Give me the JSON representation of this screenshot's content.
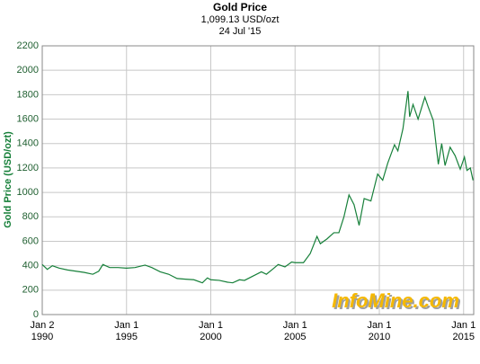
{
  "chart_data": {
    "type": "line",
    "title": "Gold Price",
    "subtitle": "1,099.13 USD/ozt",
    "date": "24 Jul '15",
    "y_label": "Gold Price (USD/ozt)",
    "watermark": "InfoMine.com",
    "color": "#17803a",
    "grid": true,
    "x": [
      1990.0,
      1990.3,
      1990.6,
      1991.0,
      1991.5,
      1992.0,
      1992.5,
      1993.0,
      1993.35,
      1993.6,
      1994.0,
      1994.5,
      1995.0,
      1995.5,
      1996.1,
      1996.5,
      1997.0,
      1997.5,
      1998.0,
      1998.5,
      1999.0,
      1999.5,
      1999.8,
      2000.0,
      2000.5,
      2001.0,
      2001.3,
      2001.7,
      2002.0,
      2002.5,
      2003.0,
      2003.3,
      2003.7,
      2004.0,
      2004.4,
      2004.8,
      2005.0,
      2005.5,
      2005.9,
      2006.3,
      2006.5,
      2006.9,
      2007.3,
      2007.6,
      2007.9,
      2008.2,
      2008.5,
      2008.8,
      2009.1,
      2009.5,
      2009.9,
      2010.2,
      2010.5,
      2010.9,
      2011.1,
      2011.4,
      2011.7,
      2011.8,
      2012.0,
      2012.3,
      2012.7,
      2012.9,
      2013.2,
      2013.5,
      2013.7,
      2013.9,
      2014.2,
      2014.5,
      2014.8,
      2015.05,
      2015.2,
      2015.4,
      2015.56
    ],
    "values": [
      410,
      370,
      400,
      380,
      365,
      355,
      345,
      330,
      355,
      410,
      385,
      385,
      380,
      385,
      405,
      385,
      350,
      330,
      295,
      290,
      285,
      260,
      300,
      285,
      280,
      265,
      260,
      285,
      280,
      315,
      350,
      330,
      375,
      410,
      390,
      430,
      425,
      425,
      500,
      640,
      580,
      620,
      670,
      670,
      800,
      980,
      900,
      730,
      950,
      930,
      1150,
      1100,
      1240,
      1390,
      1340,
      1520,
      1830,
      1620,
      1720,
      1600,
      1780,
      1700,
      1590,
      1230,
      1400,
      1220,
      1370,
      1300,
      1190,
      1290,
      1180,
      1200,
      1099.13
    ],
    "xlim": [
      1990,
      2015.6
    ],
    "xticks": [
      {
        "value": 1990,
        "label": [
          "Jan 2",
          "1990"
        ]
      },
      {
        "value": 1995,
        "label": [
          "Jan 1",
          "1995"
        ]
      },
      {
        "value": 2000,
        "label": [
          "Jan 1",
          "2000"
        ]
      },
      {
        "value": 2005,
        "label": [
          "Jan 1",
          "2005"
        ]
      },
      {
        "value": 2010,
        "label": [
          "Jan 1",
          "2010"
        ]
      },
      {
        "value": 2015,
        "label": [
          "Jan 1",
          "2015"
        ]
      }
    ],
    "ylim": [
      0,
      2200
    ],
    "yticks": [
      0,
      200,
      400,
      600,
      800,
      1000,
      1200,
      1400,
      1600,
      1800,
      2000,
      2200
    ]
  }
}
